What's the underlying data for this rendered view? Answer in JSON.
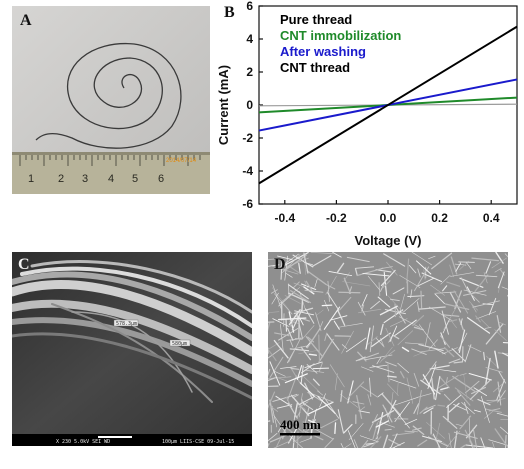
{
  "figure": {
    "panel_a": {
      "label": "A",
      "ruler_numbers": [
        "1",
        "2",
        "3",
        "4",
        "5",
        "6"
      ],
      "date_stamp": "2014/07/14"
    },
    "panel_b": {
      "label": "B"
    },
    "panel_c": {
      "label": "C",
      "annotations": [
        "578.3μm",
        "580μm"
      ],
      "info_bar": "X 230   5.0kV  SEI   WD",
      "info_bar_right": "100μm  LIIS-CSE  09-Jul-15"
    },
    "panel_d": {
      "label": "D",
      "scale_bar": "400 nm"
    }
  },
  "chart_data": {
    "type": "line",
    "title": "",
    "xlabel": "Voltage (V)",
    "ylabel": "Current (mA)",
    "xlim": [
      -0.5,
      0.5
    ],
    "ylim": [
      -6,
      6
    ],
    "xticks": [
      -0.4,
      -0.2,
      0.0,
      0.2,
      0.4
    ],
    "xtick_labels": [
      "-0.4",
      "-0.2",
      "0.0",
      "0.2",
      "0.4"
    ],
    "yticks": [
      -6,
      -4,
      -2,
      0,
      2,
      4,
      6
    ],
    "ytick_labels": [
      "-6",
      "-4",
      "-2",
      "0",
      "2",
      "4",
      "6"
    ],
    "grid": false,
    "legend_position": "top-left",
    "series": [
      {
        "name": "Pure thread",
        "color": "#9a9a9a",
        "x": [
          -0.5,
          0.5
        ],
        "y": [
          -0.05,
          0.05
        ]
      },
      {
        "name": "CNT immobilization",
        "color": "#1f8a2a",
        "x": [
          -0.5,
          0.5
        ],
        "y": [
          -0.45,
          0.45
        ]
      },
      {
        "name": "After washing",
        "color": "#1a1acc",
        "x": [
          -0.5,
          0.5
        ],
        "y": [
          -1.55,
          1.55
        ]
      },
      {
        "name": "CNT thread",
        "color": "#000000",
        "x": [
          -0.5,
          0.5
        ],
        "y": [
          -4.75,
          4.75
        ]
      }
    ],
    "legend_colors": [
      "#000000",
      "#1f8a2a",
      "#1a1acc",
      "#000000"
    ]
  }
}
